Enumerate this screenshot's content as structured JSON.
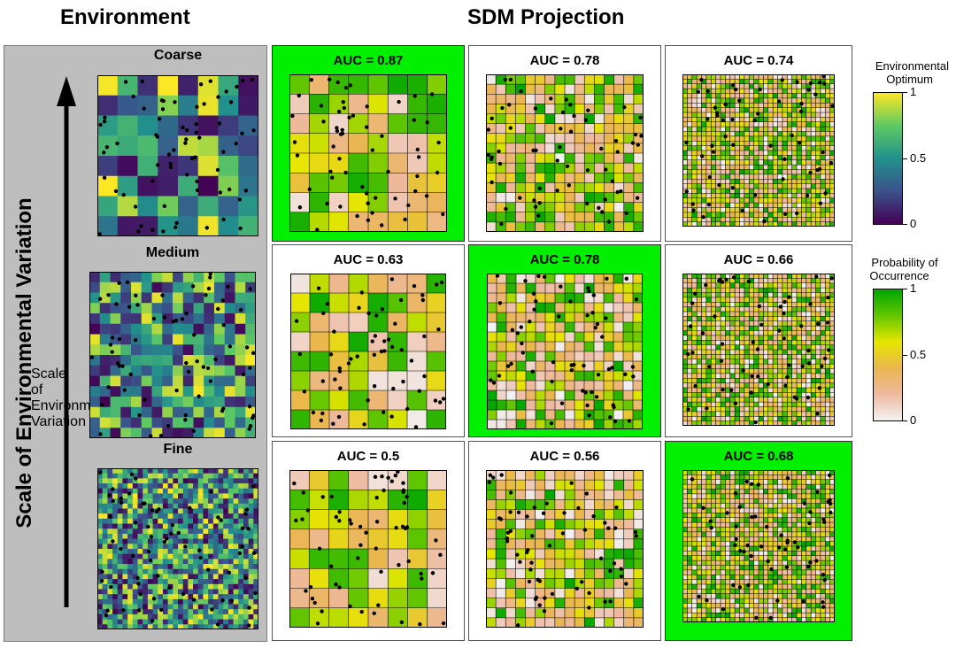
{
  "headings": {
    "environment": "Environment",
    "sdm": "SDM Projection"
  },
  "axis_label": "Scale of Environmental Variation",
  "rows": [
    {
      "scale": "Coarse",
      "env_grid": 8,
      "sdm": [
        {
          "auc_label": "AUC = 0.87",
          "grid": 8,
          "highlight": true
        },
        {
          "auc_label": "AUC = 0.78",
          "grid": 16,
          "highlight": false
        },
        {
          "auc_label": "AUC = 0.74",
          "grid": 32,
          "highlight": false
        }
      ]
    },
    {
      "scale": "Medium",
      "env_grid": 16,
      "sdm": [
        {
          "auc_label": "AUC = 0.63",
          "grid": 8,
          "highlight": false
        },
        {
          "auc_label": "AUC = 0.78",
          "grid": 16,
          "highlight": true
        },
        {
          "auc_label": "AUC = 0.66",
          "grid": 32,
          "highlight": false
        }
      ]
    },
    {
      "scale": "Fine",
      "env_grid": 32,
      "sdm": [
        {
          "auc_label": "AUC = 0.5",
          "grid": 8,
          "highlight": false
        },
        {
          "auc_label": "AUC = 0.56",
          "grid": 16,
          "highlight": false
        },
        {
          "auc_label": "AUC = 0.68",
          "grid": 32,
          "highlight": true
        }
      ]
    }
  ],
  "legend_env": {
    "title_line1": "Environmental",
    "title_line2": "Optimum",
    "ticks": [
      "1",
      "0.5",
      "0"
    ],
    "colors": [
      "#fde725",
      "#5ec962",
      "#21918c",
      "#3b528b",
      "#440154"
    ]
  },
  "legend_prob": {
    "title_line1": "Probability of",
    "title_line2": "Occurrence",
    "ticks": [
      "1",
      "0.5",
      "0"
    ],
    "colors": [
      "#00a600",
      "#63c600",
      "#e6e600",
      "#eab64e",
      "#eeb99f",
      "#f2f2f2"
    ]
  },
  "colors": {
    "highlight": "#00f000",
    "panel_bg": "#bebebe"
  }
}
